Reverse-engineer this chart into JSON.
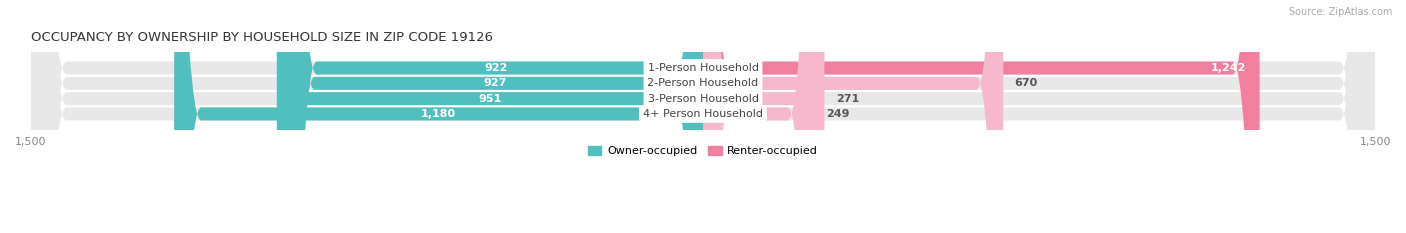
{
  "title": "OCCUPANCY BY OWNERSHIP BY HOUSEHOLD SIZE IN ZIP CODE 19126",
  "source": "Source: ZipAtlas.com",
  "categories": [
    "1-Person Household",
    "2-Person Household",
    "3-Person Household",
    "4+ Person Household"
  ],
  "owner_values": [
    922,
    927,
    951,
    1180
  ],
  "owner_labels": [
    "922",
    "927",
    "951",
    "1,180"
  ],
  "renter_values": [
    1242,
    670,
    271,
    249
  ],
  "renter_labels": [
    "1,242",
    "670",
    "271",
    "249"
  ],
  "renter_label_inside": [
    true,
    false,
    false,
    false
  ],
  "owner_color": "#52bfbf",
  "renter_color": "#f07fa0",
  "renter_color_light": "#f5b8cc",
  "bar_bg_color": "#e8e8e8",
  "x_max": 1500,
  "legend_owner": "Owner-occupied",
  "legend_renter": "Renter-occupied",
  "title_fontsize": 9.5,
  "source_fontsize": 7,
  "axis_label_fontsize": 8,
  "bar_label_fontsize": 8,
  "category_fontsize": 8
}
